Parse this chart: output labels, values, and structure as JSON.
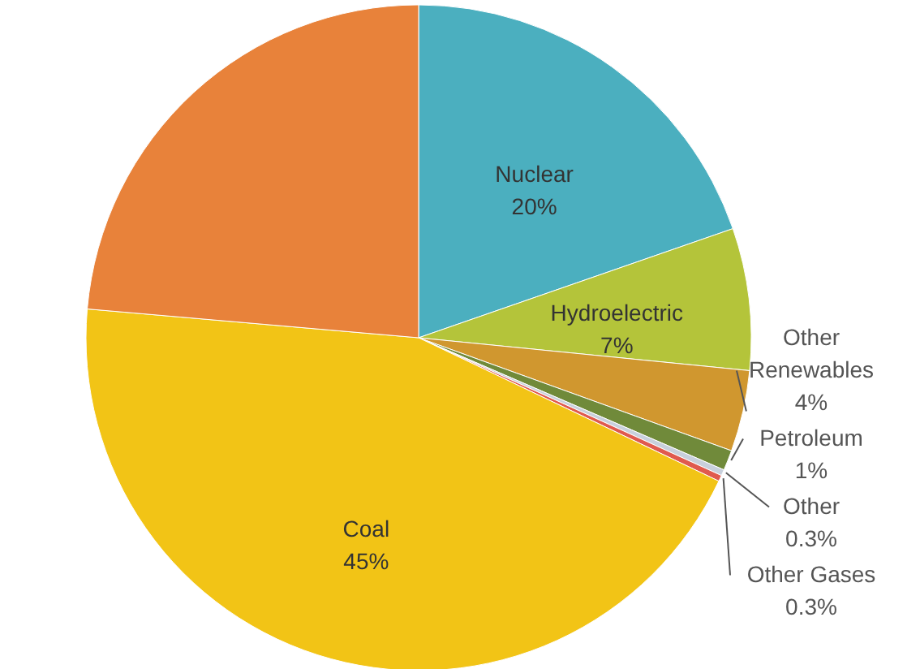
{
  "chart_data": {
    "type": "pie",
    "categories": [
      "Nuclear",
      "Hydroelectric",
      "Other Renewables",
      "Petroleum",
      "Other",
      "Other Gases",
      "Coal",
      null
    ],
    "values": [
      20,
      7,
      4,
      1,
      0.3,
      0.3,
      45,
      24
    ],
    "value_labels": [
      "20%",
      "7%",
      "4%",
      "1%",
      "0.3%",
      "0.3%",
      "45%",
      null
    ],
    "colors": [
      "#4bafbf",
      "#b4c43a",
      "#d0972f",
      "#708a3a",
      "#c8d0dc",
      "#e05a4e",
      "#f2c416",
      "#e8823a"
    ]
  }
}
